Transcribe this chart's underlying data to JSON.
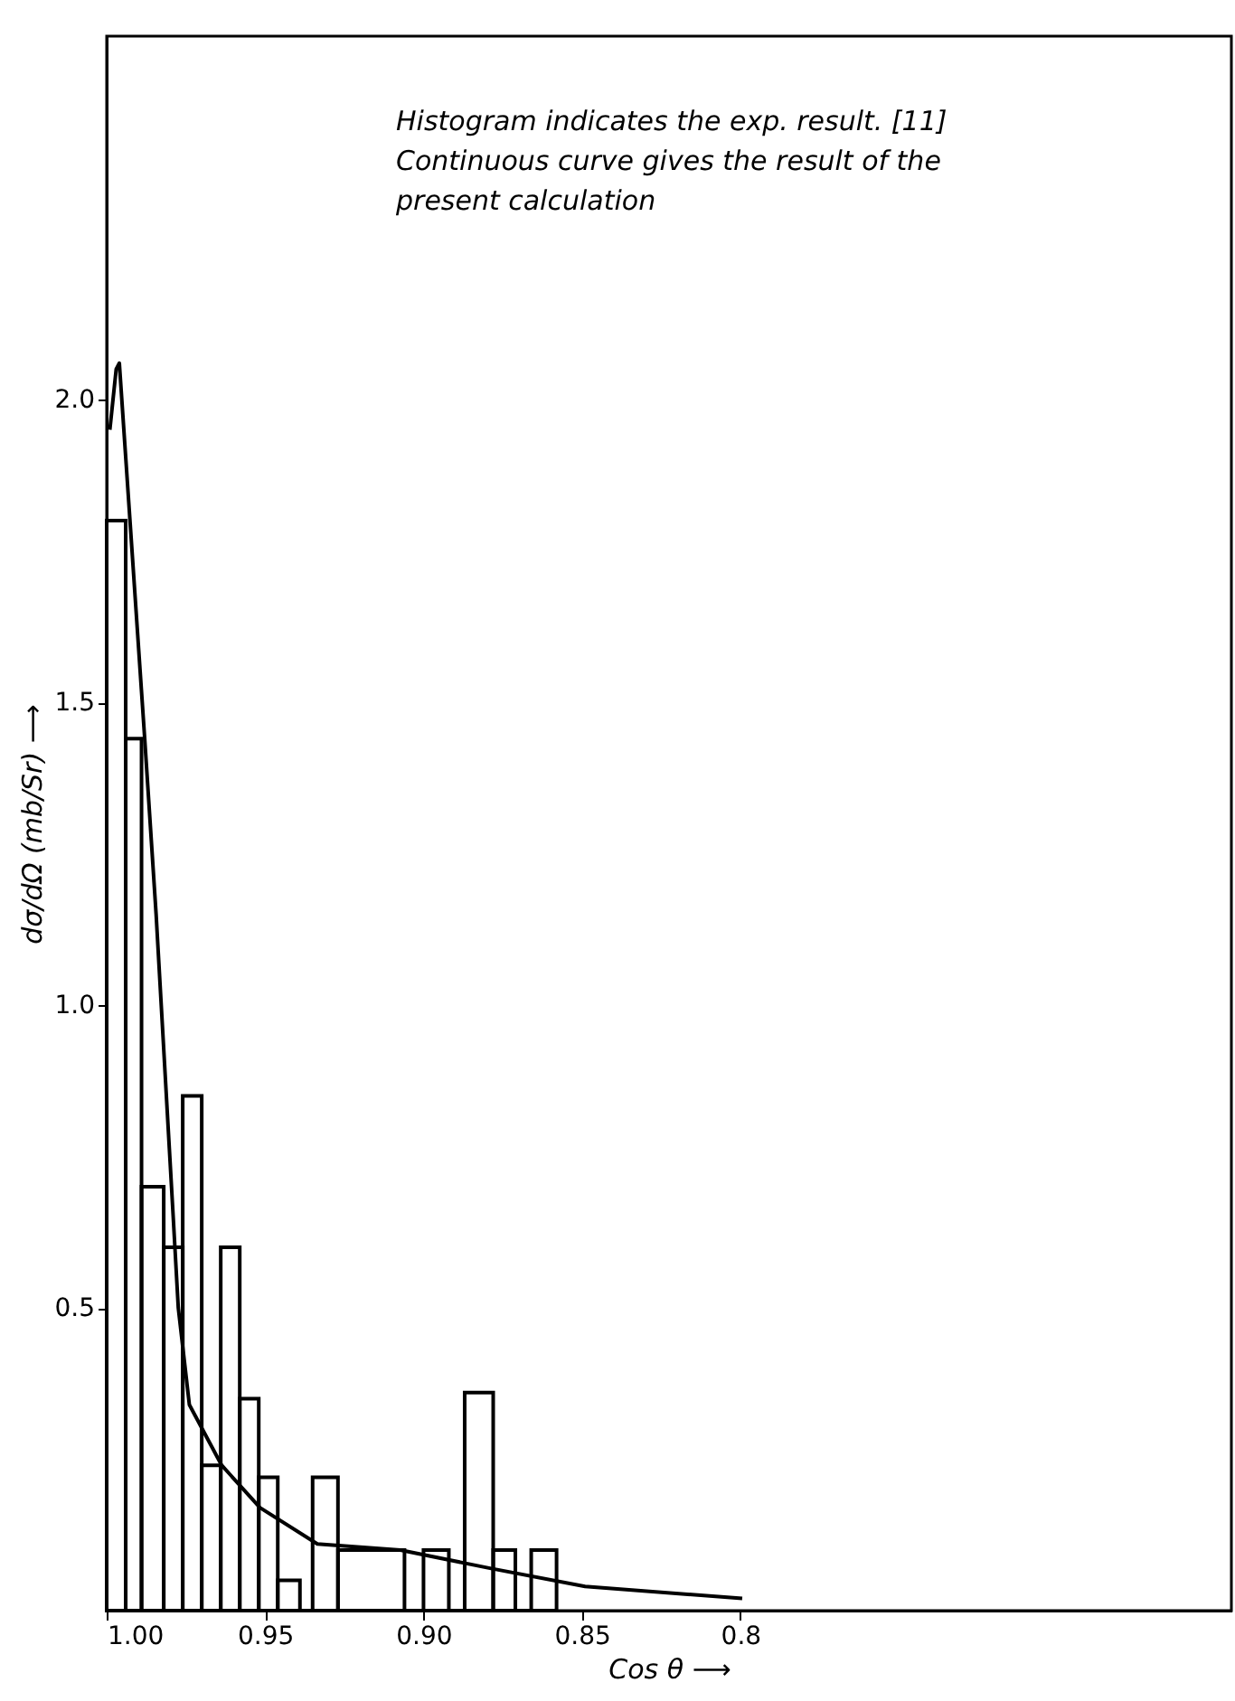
{
  "chart_data": {
    "type": "histogram",
    "xlabel": "Cos θ ⟶",
    "ylabel": "dσ/dΩ (mb/Sr) ⟶",
    "annotations": [
      "Histogram indicates the exp. result. [11]",
      "Continuous curve gives the result of the",
      "present calculation"
    ],
    "bins": [
      1.0,
      0.994,
      0.989,
      0.982,
      0.976,
      0.97,
      0.964,
      0.958,
      0.952,
      0.946,
      0.939,
      0.935,
      0.927,
      0.906,
      0.9,
      0.892,
      0.887,
      0.878,
      0.871,
      0.866,
      0.858
    ],
    "values": [
      1.8,
      1.44,
      0.7,
      0.6,
      0.85,
      0.24,
      0.6,
      0.35,
      0.22,
      0.05,
      0,
      0.22,
      0.1,
      0,
      0.1,
      0,
      0.36,
      0.1,
      0,
      0.1
    ],
    "color": "#000000",
    "series": [
      {
        "type": "line",
        "color": "#000000",
        "x": [
          0.999,
          0.997,
          0.996,
          0.988,
          0.9844,
          0.979,
          0.9774,
          0.9739,
          0.9637,
          0.9516,
          0.9335,
          0.9073,
          0.879,
          0.849,
          0.7994
        ],
        "values": [
          1.95,
          2.05,
          2.06,
          1.44,
          1.15,
          0.65,
          0.5,
          0.34,
          0.24,
          0.17,
          0.11,
          0.1,
          0.07,
          0.04,
          0.02
        ]
      }
    ],
    "xlim": [
      1.0,
      0.645
    ],
    "ylim": [
      0,
      2.6
    ],
    "xticks": [
      {
        "value": 1.0,
        "label": "1.00"
      },
      0.95,
      {
        "value": 0.9,
        "label": "0.90"
      },
      0.85,
      0.8
    ],
    "yticks": [
      0.5,
      {
        "value": 1.0,
        "label": "1.0"
      },
      1.5,
      {
        "value": 2.0,
        "label": "2.0"
      }
    ],
    "grid": false,
    "line_style": "solid",
    "marker": "none"
  }
}
